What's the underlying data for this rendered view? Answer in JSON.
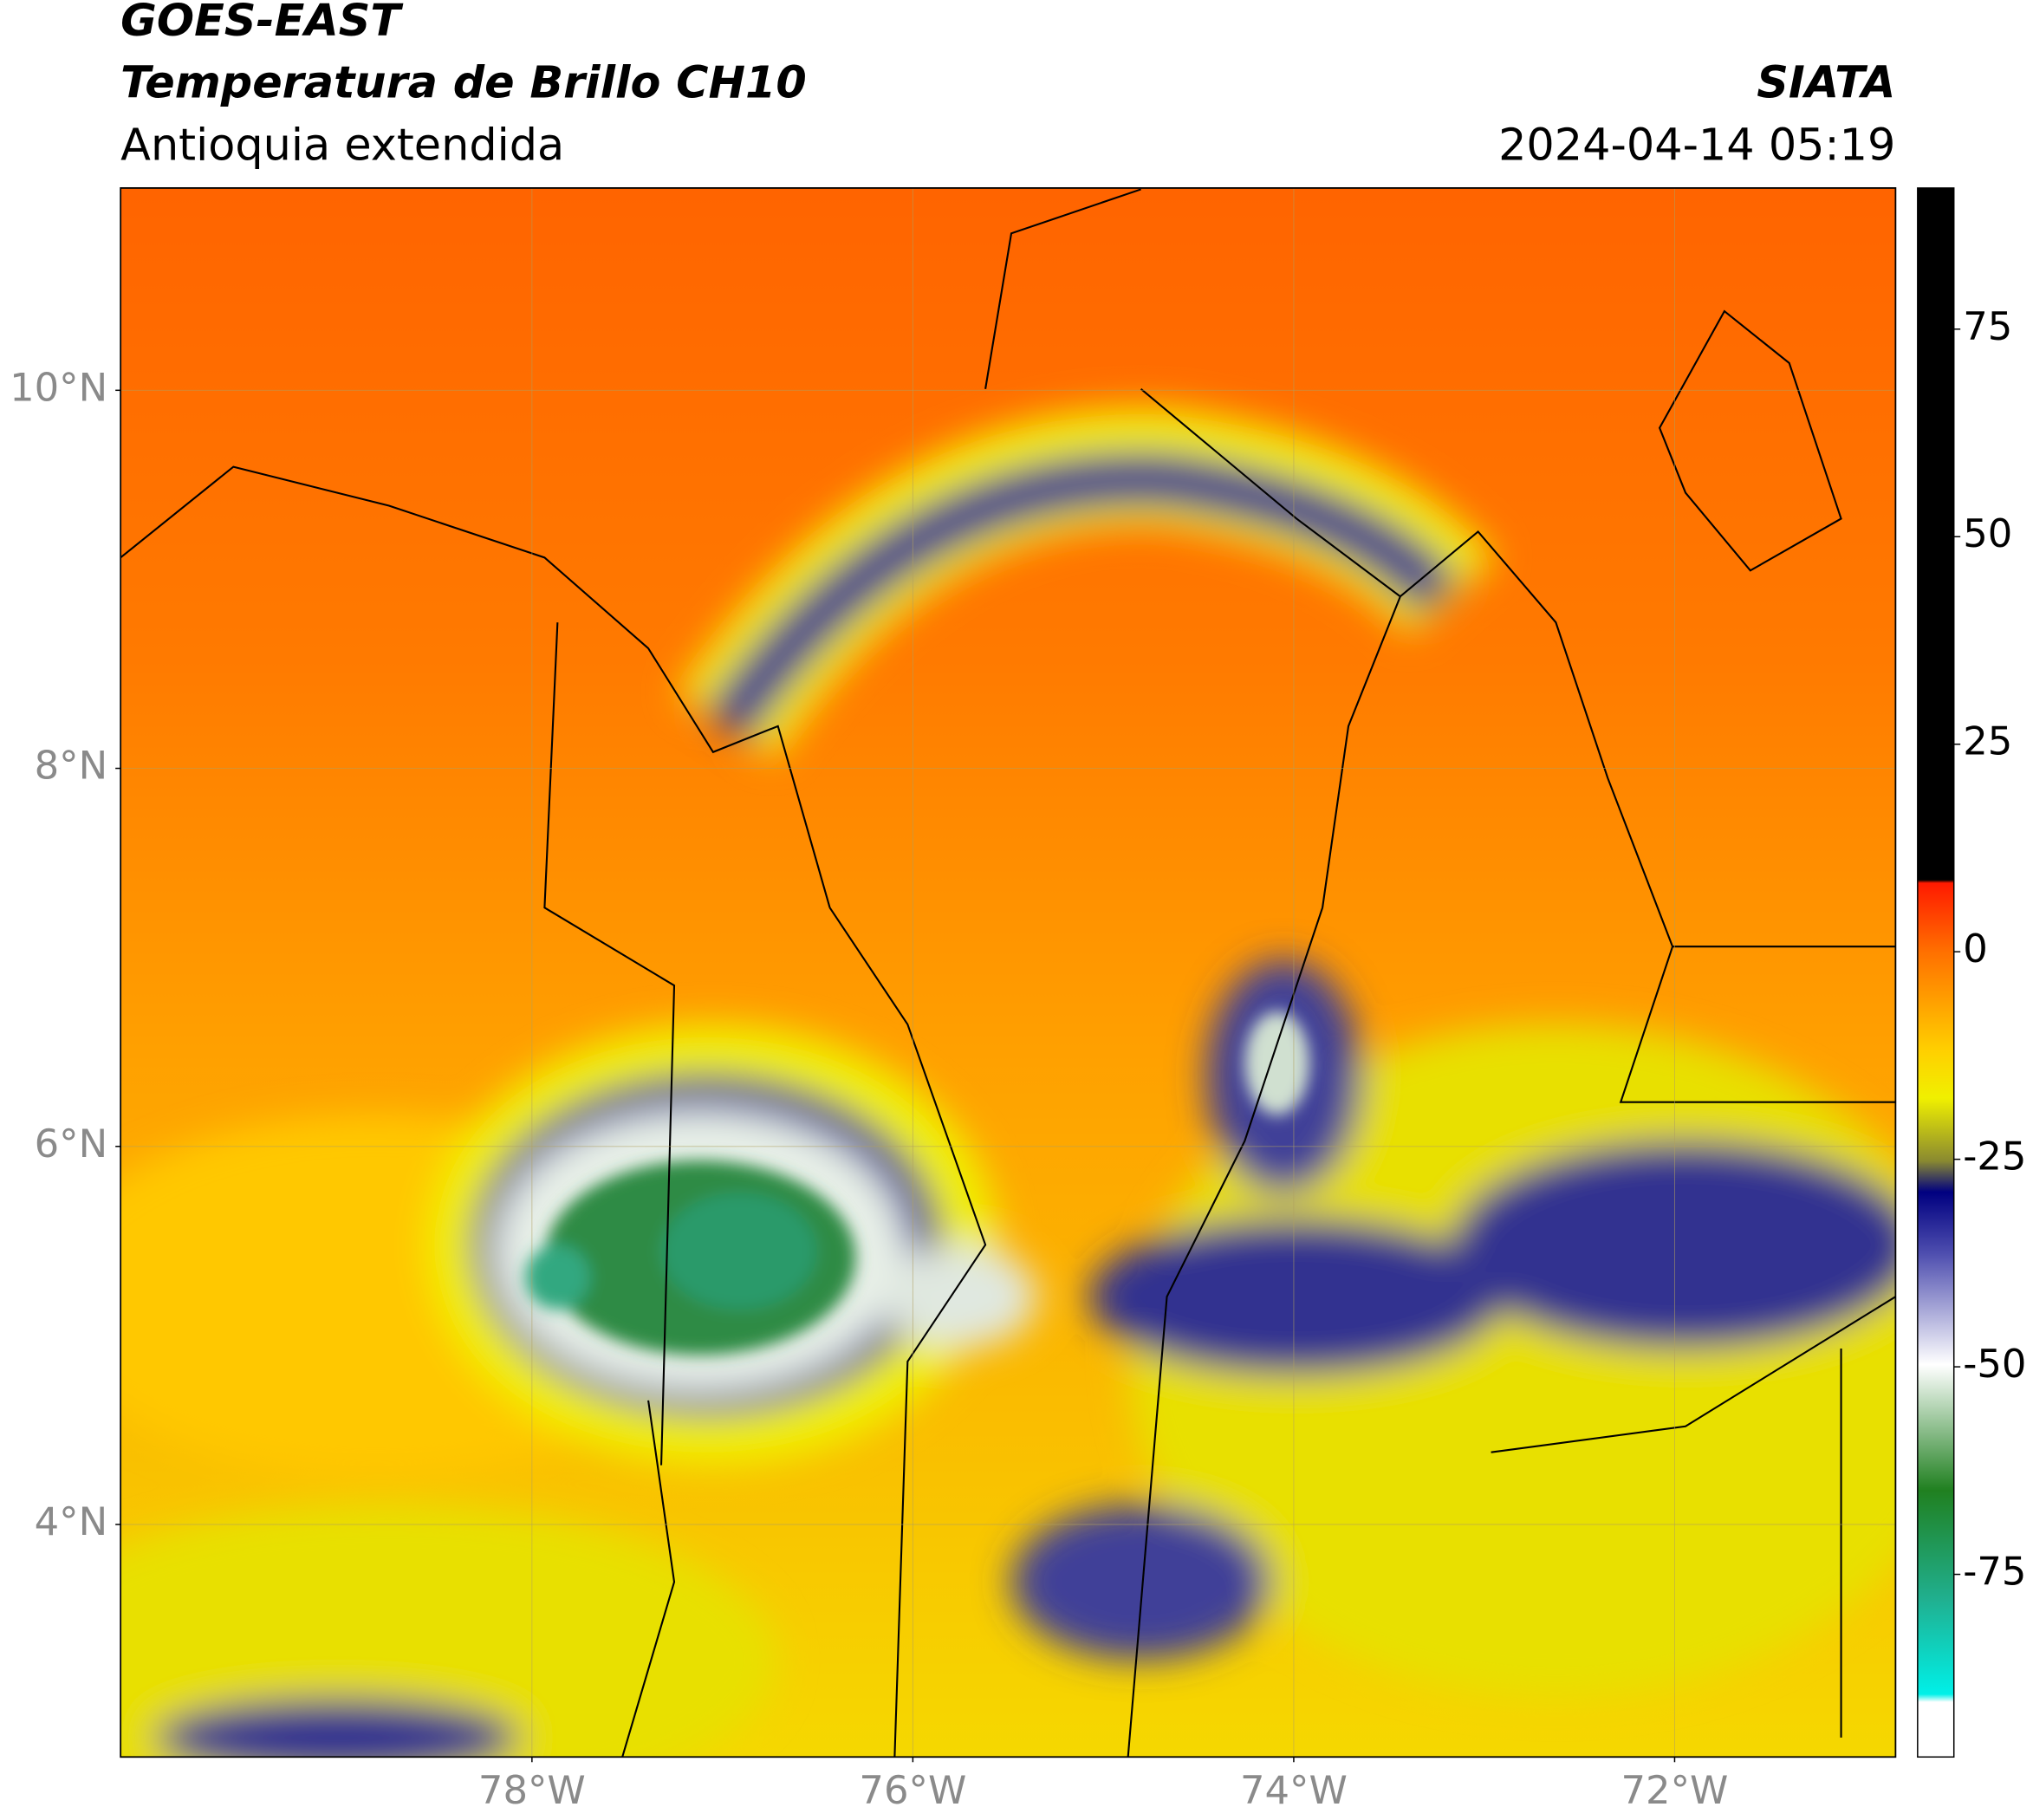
{
  "header": {
    "title": "GOES-EAST",
    "subtitle": "Temperatura de Brillo CH10",
    "region": "Antioquia extendida",
    "source": "SIATA",
    "timestamp": "2024-04-14 05:19"
  },
  "map": {
    "xlim": [
      -80.16,
      -70.84
    ],
    "ylim": [
      2.77,
      11.07
    ],
    "xticks": [
      {
        "value": -78,
        "label": "78°W"
      },
      {
        "value": -76,
        "label": "76°W"
      },
      {
        "value": -74,
        "label": "74°W"
      },
      {
        "value": -72,
        "label": "72°W"
      }
    ],
    "yticks": [
      {
        "value": 4,
        "label": "4°N"
      },
      {
        "value": 6,
        "label": "6°N"
      },
      {
        "value": 8,
        "label": "8°N"
      },
      {
        "value": 10,
        "label": "10°N"
      }
    ],
    "grid": true
  },
  "colorbar": {
    "lim": [
      -97,
      92
    ],
    "ticks": [
      -75,
      -50,
      -25,
      0,
      25,
      50,
      75
    ]
  }
}
